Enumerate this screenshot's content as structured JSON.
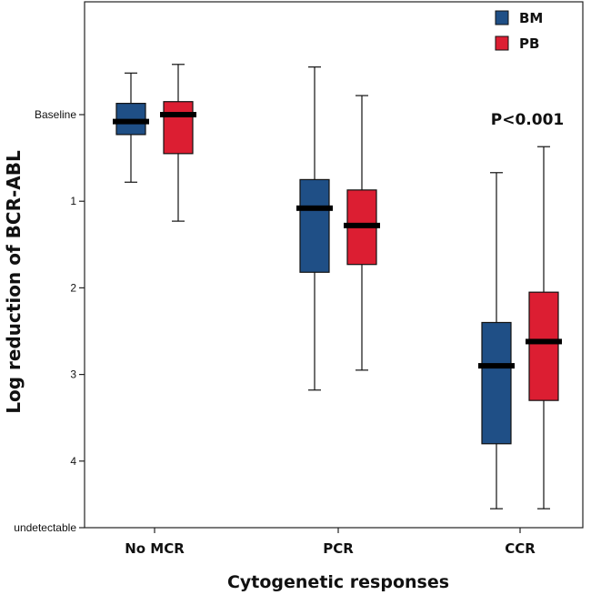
{
  "chart_data": {
    "type": "boxplot",
    "xlabel": "Cytogenetic responses",
    "ylabel": "Log reduction of BCR-ABL",
    "categories": [
      "No MCR",
      "PCR",
      "CCR"
    ],
    "y_ticks": [
      {
        "value": 0,
        "label": "Baseline"
      },
      {
        "value": 1,
        "label": "1"
      },
      {
        "value": 2,
        "label": "2"
      },
      {
        "value": 3,
        "label": "3"
      },
      {
        "value": 4,
        "label": "4"
      },
      {
        "value": 4.8,
        "label": "undetectable"
      }
    ],
    "ylim": [
      -1.25,
      4.8
    ],
    "y_inverted": true,
    "series": [
      {
        "name": "BM",
        "color": "#1f4f86",
        "boxes": [
          {
            "category": "No MCR",
            "whisker_low": -0.48,
            "q1": -0.13,
            "median": 0.08,
            "q3": 0.23,
            "whisker_high": 0.78
          },
          {
            "category": "PCR",
            "whisker_low": -0.55,
            "q1": 0.75,
            "median": 1.08,
            "q3": 1.82,
            "whisker_high": 3.18
          },
          {
            "category": "CCR",
            "whisker_low": 0.67,
            "q1": 2.4,
            "median": 2.9,
            "q3": 3.8,
            "whisker_high": 4.55
          }
        ]
      },
      {
        "name": "PB",
        "color": "#dc1e32",
        "boxes": [
          {
            "category": "No MCR",
            "whisker_low": -0.58,
            "q1": -0.15,
            "median": 0.0,
            "q3": 0.45,
            "whisker_high": 1.23
          },
          {
            "category": "PCR",
            "whisker_low": -0.22,
            "q1": 0.87,
            "median": 1.28,
            "q3": 1.73,
            "whisker_high": 2.95
          },
          {
            "category": "CCR",
            "whisker_low": 0.37,
            "q1": 2.05,
            "median": 2.62,
            "q3": 3.3,
            "whisker_high": 4.55
          }
        ]
      }
    ],
    "legend": {
      "position": "top-right",
      "entries": [
        "BM",
        "PB"
      ]
    },
    "annotations": [
      {
        "text": "P<0.001",
        "category": "CCR",
        "y": 0.05
      }
    ],
    "grid": false
  }
}
